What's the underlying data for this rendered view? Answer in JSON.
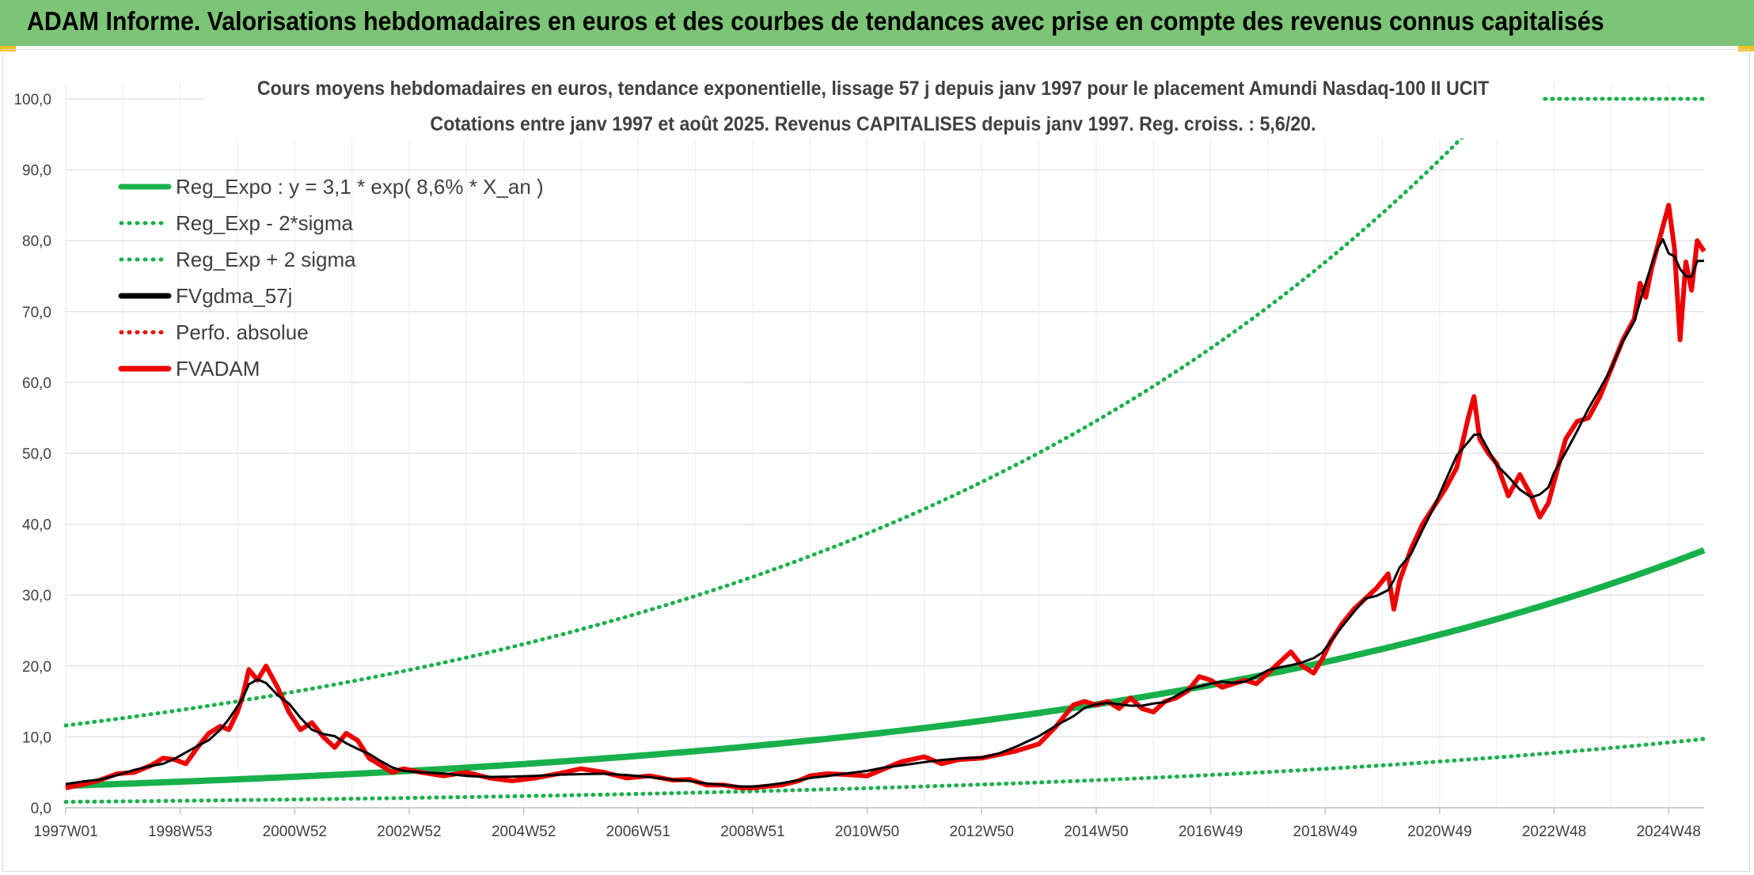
{
  "header": {
    "title": "ADAM Informe. Valorisations hebdomadaires en euros et des courbes de tendances avec prise en compte des revenus connus capitalisés"
  },
  "colors": {
    "header_bg": "#7cc576",
    "trend_green": "#18b04b",
    "gdma_black": "#000000",
    "fvadam_red": "#ee0000",
    "gridline": "#e3e3e3",
    "text": "#404040"
  },
  "chart_data": {
    "type": "line",
    "title_line1": "Cours moyens hebdomadaires en euros, tendance exponentielle, lissage 57 j depuis janv 1997 pour le placement Amundi Nasdaq-100 II UCIT",
    "title_line2": "Cotations entre janv 1997 et août 2025. Revenus CAPITALISES depuis janv 1997. Reg. croiss. : 5,6/20.",
    "ylim": [
      0,
      100
    ],
    "y_ticks": [
      "0,0",
      "10,0",
      "20,0",
      "30,0",
      "40,0",
      "50,0",
      "60,0",
      "70,0",
      "80,0",
      "90,0",
      "100,0"
    ],
    "x_ticks": [
      "1997W01",
      "1998W53",
      "2000W52",
      "2002W52",
      "2004W52",
      "2006W51",
      "2008W51",
      "2010W50",
      "2012W50",
      "2014W50",
      "2016W49",
      "2018W49",
      "2020W49",
      "2022W48",
      "2024W48"
    ],
    "x_range_years": [
      1997.0,
      2025.62
    ],
    "grid": true,
    "legend_position": "top-left",
    "legend": [
      {
        "label": "Reg_Expo : y = 3,1 * exp( 8,6% *  X_an )",
        "style": "solid",
        "color": "#18b04b"
      },
      {
        "label": "Reg_Exp - 2*sigma",
        "style": "dotted",
        "color": "#18b04b"
      },
      {
        "label": "Reg_Exp + 2 sigma",
        "style": "dotted",
        "color": "#18b04b"
      },
      {
        "label": "FVgdma_57j",
        "style": "solid",
        "color": "#000000"
      },
      {
        "label": "Perfo. absolue",
        "style": "dotted",
        "color": "#ee0000"
      },
      {
        "label": "FVADAM",
        "style": "solid",
        "color": "#ee0000"
      }
    ],
    "trend": {
      "a": 3.1,
      "rate": 0.086,
      "lower_factor": 0.2671,
      "upper_factor": 3.7435,
      "cap": 100
    },
    "series": [
      {
        "name": "FVADAM",
        "x": [
          1997.0,
          1997.3,
          1997.6,
          1997.9,
          1998.2,
          1998.5,
          1998.7,
          1998.9,
          1999.1,
          1999.3,
          1999.5,
          1999.7,
          1999.85,
          2000.0,
          2000.1,
          2000.2,
          2000.35,
          2000.5,
          2000.7,
          2000.9,
          2001.1,
          2001.3,
          2001.5,
          2001.7,
          2001.9,
          2002.1,
          2002.3,
          2002.5,
          2002.7,
          2002.9,
          2003.2,
          2003.6,
          2004.0,
          2004.4,
          2004.8,
          2005.2,
          2005.6,
          2006.0,
          2006.4,
          2006.8,
          2007.2,
          2007.6,
          2007.9,
          2008.2,
          2008.5,
          2008.8,
          2009.0,
          2009.2,
          2009.5,
          2009.8,
          2010.0,
          2010.3,
          2010.6,
          2011.0,
          2011.3,
          2011.6,
          2012.0,
          2012.3,
          2012.6,
          2013.0,
          2013.3,
          2013.6,
          2014.0,
          2014.3,
          2014.6,
          2014.8,
          2015.0,
          2015.2,
          2015.4,
          2015.6,
          2015.8,
          2016.0,
          2016.2,
          2016.4,
          2016.6,
          2016.8,
          2017.0,
          2017.2,
          2017.4,
          2017.6,
          2017.8,
          2018.0,
          2018.2,
          2018.4,
          2018.6,
          2018.8,
          2018.95,
          2019.1,
          2019.3,
          2019.5,
          2019.7,
          2019.9,
          2020.1,
          2020.2,
          2020.3,
          2020.5,
          2020.7,
          2020.9,
          2021.1,
          2021.3,
          2021.5,
          2021.6,
          2021.7,
          2021.85,
          2022.0,
          2022.2,
          2022.4,
          2022.6,
          2022.75,
          2022.9,
          2023.0,
          2023.2,
          2023.4,
          2023.6,
          2023.8,
          2024.0,
          2024.2,
          2024.4,
          2024.5,
          2024.6,
          2024.7,
          2024.8,
          2024.9,
          2025.0,
          2025.1,
          2025.2,
          2025.3,
          2025.4,
          2025.5,
          2025.62
        ],
        "values": [
          2.8,
          3.3,
          3.9,
          4.8,
          5.0,
          6.0,
          7.0,
          6.8,
          6.2,
          8.5,
          10.5,
          11.5,
          11.0,
          13.5,
          16.0,
          19.5,
          18.0,
          20.0,
          17.0,
          13.5,
          11.0,
          12.0,
          10.0,
          8.5,
          10.5,
          9.5,
          7.0,
          6.0,
          5.0,
          5.5,
          5.0,
          4.5,
          5.0,
          4.2,
          3.8,
          4.2,
          4.8,
          5.5,
          5.0,
          4.2,
          4.5,
          3.9,
          4.0,
          3.2,
          3.2,
          2.8,
          2.8,
          3.0,
          3.2,
          3.8,
          4.5,
          4.8,
          4.7,
          4.5,
          5.5,
          6.5,
          7.2,
          6.2,
          6.8,
          7.0,
          7.5,
          8.0,
          9.0,
          11.5,
          14.5,
          15.0,
          14.5,
          15.0,
          14.0,
          15.5,
          14.0,
          13.5,
          15.0,
          15.5,
          16.5,
          18.5,
          18.0,
          17.0,
          17.5,
          18.0,
          17.5,
          19.0,
          20.5,
          22.0,
          20.0,
          19.0,
          21.0,
          23.5,
          26.0,
          28.0,
          29.5,
          31.0,
          33.0,
          28.0,
          32.0,
          36.5,
          40.0,
          42.5,
          45.0,
          48.0,
          55.0,
          58.0,
          52.0,
          50.0,
          48.5,
          44.0,
          47.0,
          44.0,
          41.0,
          43.0,
          46.0,
          52.0,
          54.5,
          55.0,
          58.0,
          62.0,
          66.0,
          69.0,
          74.0,
          72.0,
          76.0,
          79.0,
          82.0,
          85.0,
          79.0,
          66.0,
          77.0,
          73.0,
          80.0,
          78.5
        ]
      }
    ]
  }
}
